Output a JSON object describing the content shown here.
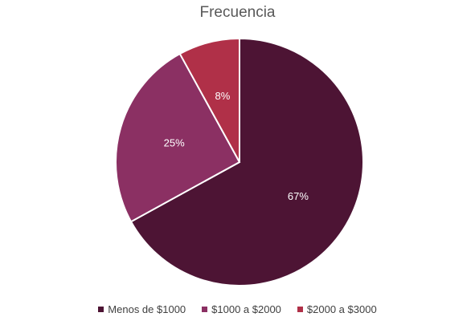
{
  "chart_data": {
    "type": "pie",
    "title": "Frecuencia",
    "categories": [
      "Menos de $1000",
      "$1000 a $2000",
      "$2000 a $3000"
    ],
    "values": [
      67,
      25,
      8
    ],
    "labels": [
      "67%",
      "25%",
      "8%"
    ],
    "colors": [
      "#4d1434",
      "#8b3063",
      "#b03048"
    ],
    "legend": "bottom"
  }
}
